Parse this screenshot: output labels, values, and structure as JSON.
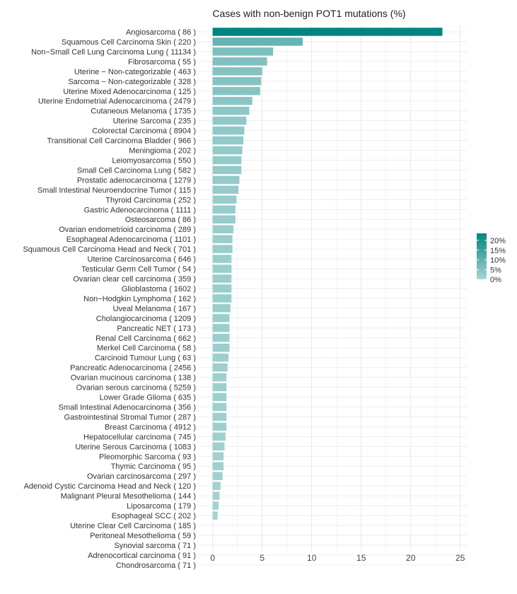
{
  "chart_data": {
    "type": "bar",
    "orientation": "horizontal",
    "title": "Cases with non-benign POT1 mutations (%)",
    "xlabel": "",
    "ylabel": "",
    "xlim": [
      0,
      25.5
    ],
    "xticks": [
      0,
      5,
      10,
      15,
      20,
      25
    ],
    "grid": true,
    "legend": {
      "position": "right",
      "labels": [
        "20%",
        "15%",
        "10%",
        "5%",
        "0%"
      ],
      "color_low": "#a8d4d4",
      "color_high": "#008580"
    },
    "categories": [
      "Angiosarcoma ( 86 )",
      "Squamous Cell Carcinoma Skin ( 220 )",
      "Non−Small Cell Lung Carcinoma Lung ( 11134 )",
      "Fibrosarcoma ( 55 )",
      "Uterine − Non-categorizable ( 463 )",
      "Sarcoma − Non-categorizable ( 328 )",
      "Uterine Mixed Adenocarcinoma ( 125 )",
      "Uterine Endometrial Adenocarcinoma ( 2479 )",
      "Cutaneous Melanoma ( 1735 )",
      "Uterine Sarcoma ( 235 )",
      "Colorectal Carcinoma ( 8904 )",
      "Transitional Cell Carcinoma Bladder ( 966 )",
      "Meningioma ( 202 )",
      "Leiomyosarcoma ( 550 )",
      "Small Cell Carcinoma Lung ( 582 )",
      "Prostatic adenocarcinoma ( 1279 )",
      "Small Intestinal Neuroendocrine Tumor ( 115 )",
      "Thyroid Carcinoma ( 252 )",
      "Gastric Adenocarcinoma ( 1111 )",
      "Osteosarcoma ( 86 )",
      "Ovarian endometrioid carcinoma ( 289 )",
      "Esophageal Adenocarcinoma ( 1101 )",
      "Squamous Cell Carcinoma Head and Neck ( 701 )",
      "Uterine Carcinosarcoma ( 646 )",
      "Testicular Germ Cell Tumor ( 54 )",
      "Ovarian clear cell carcinoma ( 359 )",
      "Glioblastoma ( 1602 )",
      "Non−Hodgkin Lymphoma ( 162 )",
      "Uveal Melanoma ( 167 )",
      "Cholangiocarcinoma ( 1209 )",
      "Pancreatic NET ( 173 )",
      "Renal Cell Carcinoma ( 662 )",
      "Merkel Cell Carcinoma ( 58 )",
      "Carcinoid Tumour Lung ( 63 )",
      "Pancreatic Adenocarcinoma ( 2456 )",
      "Ovarian mucinous carcinoma ( 138 )",
      "Ovarian serous carcinoma ( 5259 )",
      "Lower Grade Glioma ( 635 )",
      "Small Intestinal Adenocarcinoma ( 356 )",
      "Gastrointestinal Stromal Tumor ( 287 )",
      "Breast Carcinoma ( 4912 )",
      "Hepatocellular carcinoma ( 745 )",
      "Uterine Serous Carcinoma ( 1083 )",
      "Pleomorphic Sarcoma ( 93 )",
      "Thymic Carcinoma ( 95 )",
      "Ovarian carcinosarcoma ( 297 )",
      "Adenoid Cystic Carcinoma Head and Neck ( 120 )",
      "Malignant Pleural Mesothelioma ( 144 )",
      "Liposarcoma ( 179 )",
      "Esophageal SCC ( 202 )",
      "Uterine Clear Cell Carcinoma ( 185 )",
      "Peritoneal Mesothelioma ( 59 )",
      "Synovial sarcoma ( 71 )",
      "Adrenocortical carcinoma ( 91 )",
      "Chondrosarcoma ( 71 )"
    ],
    "values": [
      23.2,
      9.1,
      6.1,
      5.5,
      5.0,
      4.9,
      4.8,
      4.0,
      3.7,
      3.4,
      3.2,
      3.1,
      3.0,
      2.9,
      2.9,
      2.7,
      2.6,
      2.4,
      2.3,
      2.3,
      2.1,
      2.0,
      2.0,
      1.9,
      1.9,
      1.9,
      1.9,
      1.9,
      1.8,
      1.7,
      1.7,
      1.7,
      1.7,
      1.6,
      1.5,
      1.4,
      1.4,
      1.4,
      1.4,
      1.4,
      1.4,
      1.3,
      1.2,
      1.1,
      1.1,
      1.0,
      0.8,
      0.7,
      0.6,
      0.5,
      0,
      0,
      0,
      0,
      0
    ]
  }
}
